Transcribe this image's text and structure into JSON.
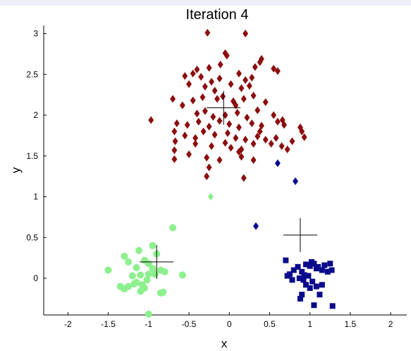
{
  "chart_data": {
    "type": "scatter",
    "title": "Iteration 4",
    "xlabel": "x",
    "ylabel": "y",
    "xlim": [
      -2.3,
      2.2
    ],
    "ylim": [
      -0.45,
      3.1
    ],
    "xticks": [
      -2,
      -1.5,
      -1,
      -0.5,
      0,
      0.5,
      1,
      1.5,
      2
    ],
    "yticks": [
      0,
      0.5,
      1,
      1.5,
      2,
      2.5,
      3
    ],
    "grid": false,
    "series": [
      {
        "marker": "diamond",
        "color": "#8b0d0d",
        "points": [
          [
            -0.27,
            3.01
          ],
          [
            0.2,
            3.0
          ],
          [
            -0.05,
            2.76
          ],
          [
            -0.03,
            2.73
          ],
          [
            -0.11,
            2.62
          ],
          [
            0.32,
            2.59
          ],
          [
            0.38,
            2.65
          ],
          [
            0.4,
            2.69
          ],
          [
            0.55,
            2.57
          ],
          [
            0.6,
            2.54
          ],
          [
            -0.4,
            2.56
          ],
          [
            -0.25,
            2.58
          ],
          [
            -0.55,
            2.48
          ],
          [
            -0.45,
            2.51
          ],
          [
            -0.35,
            2.47
          ],
          [
            -0.22,
            2.41
          ],
          [
            -0.12,
            2.45
          ],
          [
            0.12,
            2.51
          ],
          [
            0.2,
            2.43
          ],
          [
            0.28,
            2.46
          ],
          [
            -0.5,
            2.38
          ],
          [
            -0.3,
            2.35
          ],
          [
            0.02,
            2.38
          ],
          [
            0.15,
            2.33
          ],
          [
            0.25,
            2.36
          ],
          [
            -0.7,
            2.2
          ],
          [
            -0.58,
            2.12
          ],
          [
            -0.45,
            2.18
          ],
          [
            -0.33,
            2.22
          ],
          [
            -0.15,
            2.2
          ],
          [
            -0.08,
            2.23
          ],
          [
            0.05,
            2.17
          ],
          [
            0.18,
            2.2
          ],
          [
            0.3,
            2.24
          ],
          [
            0.45,
            2.16
          ],
          [
            -0.4,
            2.02
          ],
          [
            -0.3,
            2.05
          ],
          [
            -0.2,
            1.98
          ],
          [
            -0.05,
            2.0
          ],
          [
            0.1,
            2.03
          ],
          [
            0.22,
            1.97
          ],
          [
            0.35,
            2.06
          ],
          [
            0.55,
            2.0
          ],
          [
            -0.65,
            1.9
          ],
          [
            -0.52,
            1.88
          ],
          [
            -0.38,
            1.92
          ],
          [
            -0.25,
            1.86
          ],
          [
            -0.12,
            1.93
          ],
          [
            0.0,
            1.89
          ],
          [
            0.12,
            1.85
          ],
          [
            0.28,
            1.9
          ],
          [
            0.4,
            1.87
          ],
          [
            -0.97,
            1.94
          ],
          [
            -0.68,
            1.8
          ],
          [
            -0.55,
            1.75
          ],
          [
            -0.32,
            1.8
          ],
          [
            -0.18,
            1.76
          ],
          [
            -0.02,
            1.78
          ],
          [
            0.08,
            1.72
          ],
          [
            0.2,
            1.7
          ],
          [
            0.35,
            1.74
          ],
          [
            0.6,
            1.92
          ],
          [
            0.68,
            1.88
          ],
          [
            0.88,
            1.85
          ],
          [
            -0.67,
            1.68
          ],
          [
            -0.42,
            1.65
          ],
          [
            -0.22,
            1.62
          ],
          [
            -0.05,
            1.66
          ],
          [
            0.02,
            1.6
          ],
          [
            0.15,
            1.58
          ],
          [
            0.3,
            1.65
          ],
          [
            0.45,
            1.7
          ],
          [
            0.52,
            1.65
          ],
          [
            0.58,
            1.72
          ],
          [
            0.78,
            1.68
          ],
          [
            0.93,
            1.73
          ],
          [
            -0.68,
            1.57
          ],
          [
            -0.5,
            1.52
          ],
          [
            -0.28,
            1.48
          ],
          [
            -0.12,
            1.45
          ],
          [
            0.12,
            1.55
          ],
          [
            0.65,
            1.62
          ],
          [
            0.72,
            1.58
          ],
          [
            -0.68,
            1.46
          ],
          [
            -0.25,
            1.36
          ],
          [
            0.15,
            1.49
          ],
          [
            0.3,
            1.45
          ],
          [
            -0.28,
            1.25
          ],
          [
            0.18,
            1.23
          ],
          [
            0.9,
            1.8
          ],
          [
            0.66,
            1.94
          ],
          [
            -0.18,
            2.3
          ],
          [
            0.08,
            2.12
          ],
          [
            0.38,
            1.8
          ],
          [
            -0.42,
            1.72
          ]
        ]
      },
      {
        "marker": "diamond",
        "color": "#0a0a8b",
        "points": [
          [
            0.6,
            1.41
          ],
          [
            0.82,
            1.19
          ],
          [
            0.33,
            0.64
          ]
        ]
      },
      {
        "marker": "diamond",
        "color": "#8cf08c",
        "points": [
          [
            -0.23,
            1.0
          ]
        ]
      },
      {
        "marker": "square",
        "color": "#0a0a8b",
        "points": [
          [
            0.7,
            0.22
          ],
          [
            0.75,
            0.05
          ],
          [
            0.72,
            0.03
          ],
          [
            0.8,
            0.1
          ],
          [
            0.85,
            0.14
          ],
          [
            0.9,
            0.08
          ],
          [
            0.93,
            0.04
          ],
          [
            0.95,
            0.17
          ],
          [
            1.0,
            0.15
          ],
          [
            1.02,
            0.2
          ],
          [
            1.05,
            0.18
          ],
          [
            1.08,
            0.12
          ],
          [
            1.1,
            0.14
          ],
          [
            1.15,
            0.1
          ],
          [
            1.18,
            0.16
          ],
          [
            1.22,
            0.08
          ],
          [
            1.25,
            0.18
          ],
          [
            1.27,
            0.1
          ],
          [
            0.87,
            0.0
          ],
          [
            0.92,
            -0.02
          ],
          [
            0.98,
            0.03
          ],
          [
            1.03,
            -0.04
          ],
          [
            1.08,
            -0.1
          ],
          [
            1.15,
            -0.08
          ],
          [
            0.9,
            -0.2
          ],
          [
            1.0,
            -0.12
          ],
          [
            0.78,
            -0.02
          ],
          [
            0.95,
            -0.08
          ],
          [
            1.12,
            -0.2
          ],
          [
            1.28,
            -0.34
          ],
          [
            1.05,
            -0.33
          ],
          [
            0.88,
            -0.25
          ]
        ]
      },
      {
        "marker": "circle",
        "color": "#8cf08c",
        "points": [
          [
            -0.7,
            0.62
          ],
          [
            -0.95,
            0.4
          ],
          [
            -1.12,
            0.34
          ],
          [
            -0.9,
            0.3
          ],
          [
            -1.05,
            0.22
          ],
          [
            -1.3,
            0.27
          ],
          [
            -1.25,
            0.2
          ],
          [
            -1.0,
            0.18
          ],
          [
            -1.15,
            0.13
          ],
          [
            -1.5,
            0.1
          ],
          [
            -0.95,
            0.12
          ],
          [
            -0.85,
            0.1
          ],
          [
            -0.8,
            0.08
          ],
          [
            -1.0,
            0.05
          ],
          [
            -1.1,
            0.04
          ],
          [
            -1.2,
            0.03
          ],
          [
            -1.02,
            -0.02
          ],
          [
            -1.15,
            -0.05
          ],
          [
            -1.25,
            -0.1
          ],
          [
            -1.3,
            -0.13
          ],
          [
            -1.35,
            -0.1
          ],
          [
            -1.18,
            -0.07
          ],
          [
            -1.05,
            -0.12
          ],
          [
            -1.1,
            -0.16
          ],
          [
            -0.85,
            -0.18
          ],
          [
            -0.82,
            -0.17
          ],
          [
            -0.58,
            0.04
          ],
          [
            -1.0,
            -0.44
          ],
          [
            -0.92,
            0.05
          ],
          [
            -1.08,
            -0.08
          ]
        ]
      }
    ],
    "centroids": [
      {
        "marker": "plus",
        "color": "#000000",
        "x": -0.07,
        "y": 2.09
      },
      {
        "marker": "plus",
        "color": "#000000",
        "x": 0.88,
        "y": 0.53
      },
      {
        "marker": "plus",
        "color": "#000000",
        "x": -0.9,
        "y": 0.2
      }
    ]
  }
}
